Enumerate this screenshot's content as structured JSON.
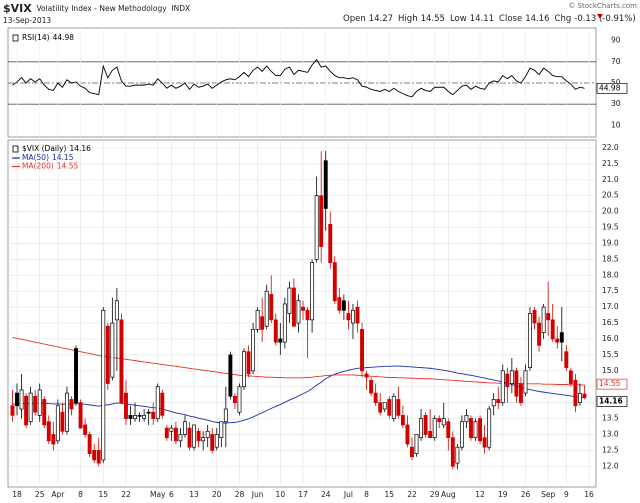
{
  "header": {
    "symbol": "$VIX",
    "name": "Volatility Index - New Methodology",
    "exchange": "INDX",
    "date": "13-Sep-2013",
    "quote": [
      {
        "label": "Open",
        "value": "14.27"
      },
      {
        "label": "High",
        "value": "14.55"
      },
      {
        "label": "Low",
        "value": "14.11"
      },
      {
        "label": "Close",
        "value": "14.16"
      },
      {
        "label": "Chg",
        "value": "-0.13 (-0.91%)"
      }
    ],
    "copyright": "© StockCharts.com"
  },
  "chart_data": {
    "type": "candlestick",
    "name": "$VIX (Daily)",
    "up_color": "#000000",
    "down_color": "#d40000",
    "grid": true,
    "categories": [
      null,
      "18",
      null,
      null,
      null,
      null,
      "25",
      null,
      null,
      null,
      "Apr",
      null,
      null,
      null,
      null,
      "8",
      null,
      null,
      null,
      null,
      "15",
      null,
      null,
      null,
      null,
      "22",
      null,
      null,
      null,
      null,
      null,
      null,
      "May",
      null,
      null,
      "6",
      null,
      null,
      null,
      null,
      "13",
      null,
      null,
      null,
      null,
      "20",
      null,
      null,
      null,
      null,
      "28",
      null,
      null,
      null,
      "Jun",
      null,
      null,
      null,
      null,
      "10",
      null,
      null,
      null,
      null,
      "17",
      null,
      null,
      null,
      null,
      "24",
      null,
      null,
      null,
      null,
      "Jul",
      null,
      null,
      null,
      "8",
      null,
      null,
      null,
      null,
      "15",
      null,
      null,
      null,
      null,
      "22",
      null,
      null,
      null,
      null,
      "29",
      null,
      null,
      "Aug",
      null,
      null,
      null,
      null,
      null,
      null,
      "12",
      null,
      null,
      null,
      null,
      "19",
      null,
      null,
      null,
      null,
      "26",
      null,
      null,
      null,
      null,
      "Sep",
      null,
      null,
      null,
      "9",
      null,
      null,
      null,
      null,
      "16"
    ],
    "ohlc": [
      [
        13.9,
        14.4,
        13.4,
        13.6
      ],
      [
        14.3,
        14.6,
        13.6,
        13.9
      ],
      [
        13.8,
        14.9,
        13.5,
        14.4
      ],
      [
        14.2,
        14.3,
        13.2,
        13.3
      ],
      [
        13.4,
        14.5,
        13.3,
        14.3
      ],
      [
        14.2,
        14.4,
        13.6,
        13.7
      ],
      [
        13.6,
        14.6,
        13.4,
        14.4
      ],
      [
        14.1,
        14.2,
        13.2,
        13.3
      ],
      [
        13.4,
        13.6,
        12.7,
        12.8
      ],
      [
        13.0,
        13.4,
        12.5,
        12.7
      ],
      [
        12.8,
        14.1,
        12.7,
        13.9
      ],
      [
        13.7,
        14.0,
        13.0,
        13.1
      ],
      [
        13.1,
        14.5,
        13.0,
        14.3
      ],
      [
        14.1,
        14.2,
        13.6,
        13.8
      ],
      [
        15.7,
        15.8,
        13.9,
        14.0
      ],
      [
        14.0,
        14.1,
        13.2,
        13.2
      ],
      [
        13.3,
        13.5,
        12.9,
        13.0
      ],
      [
        13.0,
        13.1,
        12.3,
        12.4
      ],
      [
        12.5,
        12.7,
        12.1,
        12.2
      ],
      [
        12.5,
        12.9,
        12.0,
        12.1
      ],
      [
        12.2,
        17.0,
        12.1,
        16.9
      ],
      [
        16.4,
        16.5,
        14.4,
        14.6
      ],
      [
        14.8,
        17.3,
        14.7,
        16.5
      ],
      [
        16.6,
        17.6,
        15.0,
        17.2
      ],
      [
        16.6,
        16.8,
        14.0,
        14.0
      ],
      [
        14.3,
        14.7,
        13.3,
        13.5
      ],
      [
        13.6,
        13.9,
        13.3,
        13.5
      ],
      [
        13.5,
        14.0,
        13.4,
        13.6
      ],
      [
        13.6,
        13.7,
        13.4,
        13.6
      ],
      [
        13.5,
        13.8,
        13.4,
        13.6
      ],
      [
        13.7,
        13.8,
        13.3,
        13.7
      ],
      [
        13.7,
        14.0,
        13.3,
        13.5
      ],
      [
        13.5,
        14.6,
        13.4,
        14.5
      ],
      [
        14.3,
        14.4,
        13.5,
        13.6
      ],
      [
        13.2,
        13.3,
        12.8,
        12.9
      ],
      [
        13.1,
        13.3,
        12.8,
        13.2
      ],
      [
        13.2,
        13.4,
        12.7,
        12.8
      ],
      [
        12.8,
        13.2,
        12.6,
        13.0
      ],
      [
        13.0,
        13.6,
        12.9,
        13.4
      ],
      [
        13.2,
        13.4,
        12.5,
        12.6
      ],
      [
        12.6,
        13.3,
        12.5,
        13.3
      ],
      [
        13.1,
        13.2,
        12.6,
        12.8
      ],
      [
        12.8,
        13.1,
        12.5,
        12.9
      ],
      [
        12.9,
        13.3,
        12.6,
        13.1
      ],
      [
        13.0,
        13.2,
        12.4,
        12.5
      ],
      [
        12.6,
        13.2,
        12.5,
        13.0
      ],
      [
        12.9,
        13.4,
        12.6,
        13.4
      ],
      [
        13.4,
        14.5,
        12.6,
        13.8
      ],
      [
        15.5,
        15.6,
        14.1,
        14.2
      ],
      [
        14.2,
        14.3,
        13.8,
        14.0
      ],
      [
        13.7,
        14.6,
        13.6,
        14.5
      ],
      [
        14.5,
        15.7,
        14.4,
        15.6
      ],
      [
        15.6,
        15.8,
        14.8,
        14.9
      ],
      [
        15.0,
        16.5,
        14.9,
        16.3
      ],
      [
        16.3,
        17.0,
        16.2,
        16.9
      ],
      [
        16.7,
        17.3,
        15.9,
        16.3
      ],
      [
        16.4,
        17.7,
        16.3,
        17.5
      ],
      [
        17.4,
        18.0,
        16.5,
        16.6
      ],
      [
        16.6,
        16.8,
        15.8,
        15.9
      ],
      [
        16.0,
        16.5,
        15.5,
        15.9
      ],
      [
        15.9,
        17.3,
        15.7,
        17.1
      ],
      [
        16.8,
        17.8,
        16.5,
        17.6
      ],
      [
        17.6,
        17.9,
        16.4,
        16.4
      ],
      [
        16.5,
        17.4,
        16.2,
        17.2
      ],
      [
        17.0,
        17.2,
        16.6,
        16.9
      ],
      [
        16.9,
        17.0,
        15.4,
        16.6
      ],
      [
        16.6,
        18.5,
        16.2,
        18.4
      ],
      [
        18.5,
        21.1,
        18.4,
        20.5
      ],
      [
        20.5,
        21.9,
        18.4,
        18.9
      ],
      [
        21.6,
        21.9,
        19.4,
        20.1
      ],
      [
        19.6,
        20.0,
        18.2,
        18.4
      ],
      [
        18.4,
        18.6,
        17.1,
        17.2
      ],
      [
        17.3,
        17.6,
        16.8,
        16.9
      ],
      [
        17.2,
        17.4,
        16.6,
        16.9
      ],
      [
        16.8,
        17.2,
        16.3,
        16.6
      ],
      [
        16.5,
        17.1,
        16.0,
        16.9
      ],
      [
        17.0,
        17.2,
        16.2,
        16.5
      ],
      [
        16.3,
        16.5,
        14.8,
        15.0
      ],
      [
        14.9,
        15.0,
        14.4,
        14.8
      ],
      [
        14.7,
        14.8,
        14.2,
        14.3
      ],
      [
        14.3,
        14.6,
        13.9,
        14.0
      ],
      [
        14.0,
        14.3,
        13.6,
        13.7
      ],
      [
        13.8,
        14.0,
        13.7,
        14.0
      ],
      [
        14.1,
        14.2,
        13.5,
        13.6
      ],
      [
        13.5,
        14.3,
        13.4,
        14.2
      ],
      [
        14.1,
        14.5,
        13.5,
        13.6
      ],
      [
        13.6,
        13.9,
        13.2,
        13.3
      ],
      [
        13.3,
        13.6,
        12.6,
        12.7
      ],
      [
        12.6,
        12.9,
        12.2,
        12.3
      ],
      [
        12.4,
        13.0,
        12.3,
        13.0
      ],
      [
        12.9,
        13.8,
        12.8,
        13.5
      ],
      [
        13.6,
        13.7,
        12.9,
        13.0
      ],
      [
        13.1,
        13.8,
        12.9,
        12.9
      ],
      [
        12.9,
        13.6,
        12.8,
        13.5
      ],
      [
        13.5,
        13.6,
        13.2,
        13.4
      ],
      [
        13.3,
        14.0,
        13.2,
        13.5
      ],
      [
        13.4,
        13.5,
        12.5,
        12.9
      ],
      [
        12.9,
        13.1,
        11.9,
        12.0
      ],
      [
        12.1,
        12.7,
        11.9,
        12.6
      ],
      [
        12.6,
        13.6,
        12.5,
        13.4
      ],
      [
        13.4,
        13.8,
        13.2,
        13.6
      ],
      [
        13.5,
        13.6,
        12.8,
        12.9
      ],
      [
        12.9,
        13.5,
        12.8,
        13.4
      ],
      [
        13.5,
        13.6,
        12.7,
        12.8
      ],
      [
        12.9,
        13.3,
        12.4,
        12.6
      ],
      [
        12.6,
        13.9,
        12.5,
        13.8
      ],
      [
        13.9,
        14.3,
        13.6,
        14.1
      ],
      [
        14.1,
        14.5,
        13.8,
        14.0
      ],
      [
        14.0,
        15.2,
        13.9,
        15.0
      ],
      [
        14.9,
        15.1,
        14.0,
        14.5
      ],
      [
        14.6,
        15.4,
        14.3,
        15.0
      ],
      [
        15.0,
        15.1,
        14.0,
        14.2
      ],
      [
        14.6,
        14.8,
        13.9,
        14.0
      ],
      [
        14.3,
        15.2,
        14.2,
        15.0
      ],
      [
        15.1,
        17.0,
        15.0,
        16.8
      ],
      [
        16.9,
        17.0,
        16.3,
        16.5
      ],
      [
        16.5,
        16.7,
        15.6,
        15.8
      ],
      [
        16.2,
        17.1,
        16.0,
        17.0
      ],
      [
        16.8,
        17.8,
        16.1,
        16.6
      ],
      [
        16.6,
        17.1,
        15.9,
        16.0
      ],
      [
        16.0,
        16.4,
        15.7,
        15.9
      ],
      [
        16.2,
        17.0,
        15.3,
        15.9
      ],
      [
        15.6,
        15.8,
        15.0,
        15.1
      ],
      [
        15.0,
        15.1,
        14.5,
        14.6
      ],
      [
        14.7,
        14.9,
        13.7,
        13.9
      ],
      [
        14.0,
        14.6,
        13.9,
        14.29
      ],
      [
        14.27,
        14.55,
        14.11,
        14.16
      ],
      null
    ],
    "series": [
      {
        "name": "MA(50)",
        "color": "#1c2fa8",
        "values": [
          13.95,
          13.96,
          13.97,
          13.97,
          13.98,
          13.98,
          13.99,
          13.98,
          13.97,
          13.96,
          13.96,
          13.95,
          13.95,
          13.96,
          13.97,
          13.96,
          13.95,
          13.93,
          13.91,
          13.89,
          13.92,
          13.93,
          13.96,
          13.99,
          13.98,
          13.96,
          13.94,
          13.92,
          13.9,
          13.88,
          13.86,
          13.84,
          13.83,
          13.8,
          13.76,
          13.72,
          13.68,
          13.65,
          13.62,
          13.58,
          13.55,
          13.51,
          13.48,
          13.45,
          13.41,
          13.38,
          13.36,
          13.36,
          13.37,
          13.38,
          13.41,
          13.45,
          13.49,
          13.55,
          13.62,
          13.68,
          13.75,
          13.82,
          13.88,
          13.94,
          14.01,
          14.08,
          14.14,
          14.21,
          14.28,
          14.35,
          14.44,
          14.55,
          14.64,
          14.75,
          14.83,
          14.89,
          14.94,
          14.98,
          15.02,
          15.05,
          15.08,
          15.09,
          15.1,
          15.11,
          15.12,
          15.13,
          15.14,
          15.14,
          15.15,
          15.15,
          15.14,
          15.13,
          15.12,
          15.11,
          15.1,
          15.09,
          15.08,
          15.06,
          15.04,
          15.02,
          14.99,
          14.96,
          14.93,
          14.91,
          14.88,
          14.86,
          14.83,
          14.8,
          14.77,
          14.74,
          14.71,
          14.68,
          14.65,
          14.61,
          14.57,
          14.53,
          14.48,
          14.44,
          14.41,
          14.38,
          14.35,
          14.33,
          14.31,
          14.29,
          14.27,
          14.25,
          14.23,
          14.21,
          14.19,
          14.17,
          14.15,
          null
        ]
      },
      {
        "name": "MA(200)",
        "color": "#e8332b",
        "values": [
          16.05,
          16.02,
          15.99,
          15.96,
          15.93,
          15.9,
          15.87,
          15.84,
          15.81,
          15.78,
          15.75,
          15.72,
          15.69,
          15.66,
          15.63,
          15.6,
          15.57,
          15.54,
          15.51,
          15.48,
          15.46,
          15.44,
          15.42,
          15.4,
          15.38,
          15.36,
          15.34,
          15.32,
          15.3,
          15.28,
          15.26,
          15.24,
          15.22,
          15.2,
          15.18,
          15.16,
          15.14,
          15.12,
          15.1,
          15.08,
          15.06,
          15.04,
          15.02,
          15.0,
          14.98,
          14.96,
          14.94,
          14.92,
          14.9,
          14.88,
          14.86,
          14.85,
          14.84,
          14.83,
          14.82,
          14.81,
          14.8,
          14.8,
          14.79,
          14.79,
          14.78,
          14.78,
          14.78,
          14.78,
          14.78,
          14.79,
          14.8,
          14.82,
          14.83,
          14.85,
          14.86,
          14.87,
          14.87,
          14.87,
          14.87,
          14.87,
          14.86,
          14.85,
          14.84,
          14.83,
          14.82,
          14.81,
          14.8,
          14.79,
          14.79,
          14.78,
          14.78,
          14.77,
          14.77,
          14.76,
          14.76,
          14.75,
          14.75,
          14.74,
          14.73,
          14.72,
          14.71,
          14.7,
          14.69,
          14.68,
          14.67,
          14.66,
          14.65,
          14.64,
          14.63,
          14.62,
          14.62,
          14.61,
          14.61,
          14.6,
          14.6,
          14.6,
          14.59,
          14.59,
          14.59,
          14.59,
          14.59,
          14.58,
          14.58,
          14.58,
          14.57,
          14.57,
          14.57,
          14.56,
          14.56,
          14.56,
          14.55,
          null
        ]
      }
    ],
    "ylim": [
      11.35,
      22.25
    ],
    "yticks": [
      {
        "value": 12,
        "label": "12.0"
      },
      12.5,
      {
        "value": 13,
        "label": "13.0"
      },
      13.5,
      {
        "value": 14,
        "label": "14.0"
      },
      14.5,
      {
        "value": 15,
        "label": "15.0"
      },
      15.5,
      {
        "value": 16,
        "label": "16.0"
      },
      16.5,
      {
        "value": 17,
        "label": "17.0"
      },
      17.5,
      {
        "value": 18,
        "label": "18.0"
      },
      18.5,
      {
        "value": 19,
        "label": "19.0"
      },
      19.5,
      {
        "value": 20,
        "label": "20.0"
      },
      20.5,
      {
        "value": 21,
        "label": "21.0"
      },
      21.5,
      {
        "value": 22,
        "label": "22.0"
      }
    ],
    "indicator": {
      "type": "line",
      "name": "RSI(14)",
      "color": "#000000",
      "values": [
        48,
        51,
        55,
        50,
        54,
        51,
        54,
        48,
        44,
        43,
        50,
        46,
        53,
        50,
        51,
        47,
        45,
        41,
        40,
        39,
        66,
        55,
        62,
        65,
        52,
        47,
        47,
        48,
        48,
        48,
        49,
        48,
        54,
        50,
        45,
        48,
        45,
        47,
        50,
        44,
        49,
        46,
        47,
        49,
        45,
        48,
        51,
        53,
        54,
        53,
        56,
        60,
        56,
        62,
        65,
        61,
        66,
        61,
        57,
        57,
        63,
        65,
        58,
        62,
        61,
        60,
        67,
        72,
        65,
        66,
        61,
        57,
        55,
        55,
        54,
        55,
        53,
        47,
        46,
        44,
        43,
        42,
        44,
        42,
        45,
        42,
        40,
        38,
        37,
        42,
        45,
        43,
        42,
        46,
        46,
        46,
        42,
        39,
        43,
        47,
        48,
        44,
        47,
        45,
        44,
        50,
        52,
        51,
        57,
        54,
        57,
        52,
        50,
        56,
        64,
        62,
        58,
        64,
        61,
        57,
        56,
        56,
        52,
        49,
        44,
        46,
        44.98,
        null
      ],
      "ylim": [
        0,
        100
      ],
      "yticks": [
        10,
        30,
        50,
        70,
        90
      ],
      "levels": [
        {
          "value": 70,
          "style": "solid"
        },
        {
          "value": 50,
          "style": "dashed"
        },
        {
          "value": 30,
          "style": "solid"
        }
      ]
    }
  }
}
